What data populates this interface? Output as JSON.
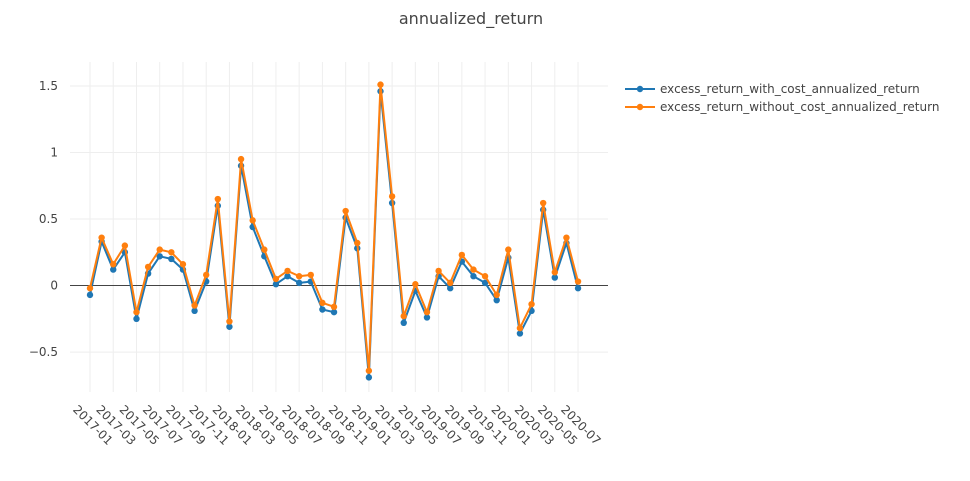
{
  "chart_data": {
    "type": "line",
    "title": "annualized_return",
    "xlabel": "",
    "ylabel": "",
    "ylim": [
      -0.8,
      1.68
    ],
    "y_ticks": [
      -0.5,
      0,
      0.5,
      1,
      1.5
    ],
    "y_tick_labels": [
      "−0.5",
      "0",
      "0.5",
      "1",
      "1.5"
    ],
    "x_tick_labels": [
      "2017-01",
      "2017-03",
      "2017-05",
      "2017-07",
      "2017-09",
      "2017-11",
      "2018-01",
      "2018-03",
      "2018-05",
      "2018-07",
      "2018-09",
      "2018-11",
      "2019-01",
      "2019-03",
      "2019-05",
      "2019-07",
      "2019-09",
      "2019-11",
      "2020-01",
      "2020-03",
      "2020-05",
      "2020-07"
    ],
    "x": [
      "2017-01",
      "2017-02",
      "2017-03",
      "2017-04",
      "2017-05",
      "2017-06",
      "2017-07",
      "2017-08",
      "2017-09",
      "2017-10",
      "2017-11",
      "2017-12",
      "2018-01",
      "2018-02",
      "2018-03",
      "2018-04",
      "2018-05",
      "2018-06",
      "2018-07",
      "2018-08",
      "2018-09",
      "2018-10",
      "2018-11",
      "2018-12",
      "2019-01",
      "2019-02",
      "2019-03",
      "2019-04",
      "2019-05",
      "2019-06",
      "2019-07",
      "2019-08",
      "2019-09",
      "2019-10",
      "2019-11",
      "2019-12",
      "2020-01",
      "2020-02",
      "2020-03",
      "2020-04",
      "2020-05",
      "2020-06",
      "2020-07"
    ],
    "series": [
      {
        "name": "excess_return_with_cost_annualized_return",
        "color": "#1f77b4",
        "values": [
          -0.07,
          0.33,
          0.12,
          0.25,
          -0.25,
          0.09,
          0.22,
          0.2,
          0.12,
          -0.19,
          0.03,
          0.6,
          -0.31,
          0.9,
          0.44,
          0.22,
          0.01,
          0.07,
          0.02,
          0.03,
          -0.18,
          -0.2,
          0.51,
          0.28,
          -0.69,
          1.46,
          0.62,
          -0.28,
          -0.04,
          -0.24,
          0.07,
          -0.02,
          0.18,
          0.07,
          0.02,
          -0.11,
          0.21,
          -0.36,
          -0.19,
          0.57,
          0.06,
          0.32,
          -0.02
        ]
      },
      {
        "name": "excess_return_without_cost_annualized_return",
        "color": "#ff7f0e",
        "values": [
          -0.02,
          0.36,
          0.16,
          0.3,
          -0.2,
          0.14,
          0.27,
          0.25,
          0.16,
          -0.15,
          0.08,
          0.65,
          -0.27,
          0.95,
          0.49,
          0.27,
          0.05,
          0.11,
          0.07,
          0.08,
          -0.13,
          -0.16,
          0.56,
          0.32,
          -0.64,
          1.51,
          0.67,
          -0.23,
          0.01,
          -0.2,
          0.11,
          0.02,
          0.23,
          0.12,
          0.07,
          -0.07,
          0.27,
          -0.32,
          -0.14,
          0.62,
          0.1,
          0.36,
          0.03
        ]
      }
    ],
    "grid": true,
    "legend_position": "top-right"
  }
}
